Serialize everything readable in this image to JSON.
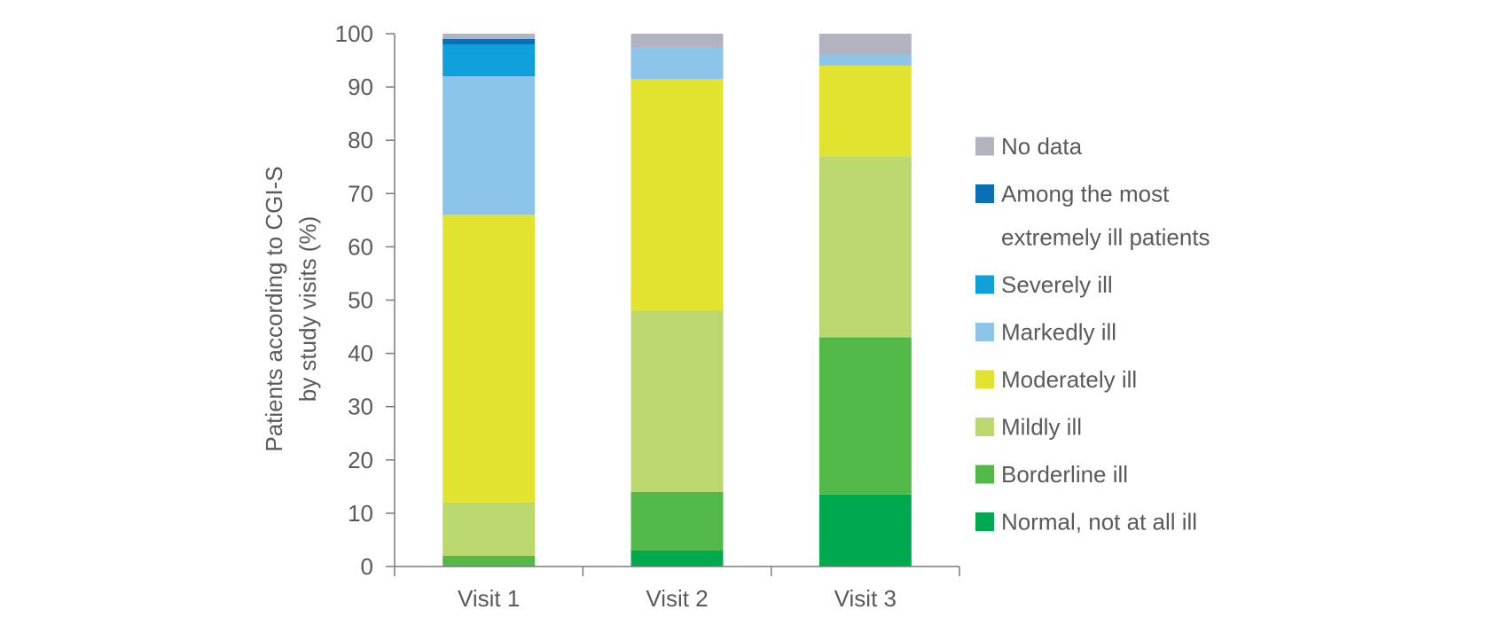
{
  "chart_data": {
    "type": "bar",
    "stacked": true,
    "orientation": "vertical",
    "title": "",
    "ylabel": [
      "Patients according to CGI-S",
      "by study visits (%)"
    ],
    "xlabel": "",
    "ylim": [
      0,
      100
    ],
    "yticks": [
      0,
      10,
      20,
      30,
      40,
      50,
      60,
      70,
      80,
      90,
      100
    ],
    "categories": [
      "Visit 1",
      "Visit 2",
      "Visit 3"
    ],
    "grid": false,
    "legend_position": "right",
    "series": [
      {
        "name": "Normal, not at all ill",
        "color": "#00a94f",
        "values": [
          0,
          3,
          13.5
        ]
      },
      {
        "name": "Borderline ill",
        "color": "#52b848",
        "values": [
          2,
          11,
          29.5
        ]
      },
      {
        "name": "Mildly ill",
        "color": "#bad86e",
        "values": [
          10,
          34,
          34
        ]
      },
      {
        "name": "Moderately ill",
        "color": "#e1e32f",
        "values": [
          54,
          43.5,
          17
        ]
      },
      {
        "name": "Markedly ill",
        "color": "#8dc4ea",
        "values": [
          26,
          6,
          2
        ]
      },
      {
        "name": "Severely ill",
        "color": "#0fa0dc",
        "values": [
          6,
          0,
          0
        ]
      },
      {
        "name": "Among the most extremely ill patients",
        "color": "#0a6fb4",
        "values": [
          1,
          0,
          0
        ]
      },
      {
        "name": "No data",
        "color": "#b1b4bf",
        "values": [
          1,
          2.5,
          4
        ]
      }
    ],
    "legend_order": [
      {
        "lines": [
          "No data"
        ],
        "color": "#b1b4bf"
      },
      {
        "lines": [
          "Among the most",
          "extremely ill patients"
        ],
        "color": "#0a6fb4"
      },
      {
        "lines": [
          "Severely ill"
        ],
        "color": "#0fa0dc"
      },
      {
        "lines": [
          "Markedly ill"
        ],
        "color": "#8dc4ea"
      },
      {
        "lines": [
          "Moderately ill"
        ],
        "color": "#e1e32f"
      },
      {
        "lines": [
          "Mildly ill"
        ],
        "color": "#bad86e"
      },
      {
        "lines": [
          "Borderline ill"
        ],
        "color": "#52b848"
      },
      {
        "lines": [
          "Normal, not at all ill"
        ],
        "color": "#00a94f"
      }
    ]
  }
}
